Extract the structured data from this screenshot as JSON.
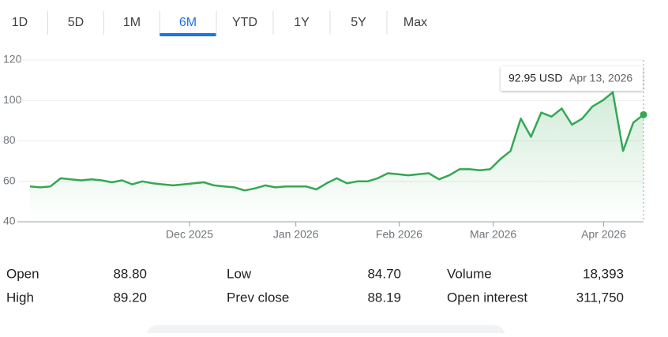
{
  "tabs": {
    "items": [
      "1D",
      "5D",
      "1M",
      "6M",
      "YTD",
      "1Y",
      "5Y",
      "Max"
    ],
    "selected": 3
  },
  "chart_data": {
    "type": "line",
    "series": [
      {
        "color": "#34a853",
        "values": [
          57.5,
          57,
          57.5,
          61.5,
          61,
          60.5,
          61,
          60.5,
          59.5,
          60.5,
          58.5,
          60,
          59,
          58.5,
          58,
          58.5,
          59,
          59.5,
          58,
          57.5,
          57,
          55.5,
          56.5,
          58,
          57,
          57.5,
          57.5,
          57.5,
          56,
          59,
          61.5,
          59,
          60,
          60,
          61.5,
          64,
          63.5,
          63,
          63.5,
          64,
          61,
          63,
          66,
          66,
          65.5,
          66,
          71,
          75,
          91,
          82,
          94,
          92,
          96,
          88,
          91,
          97,
          100,
          104,
          75,
          89,
          92.95
        ]
      }
    ],
    "ylim": [
      40,
      120
    ],
    "yticks": [
      40,
      60,
      80,
      100,
      120
    ],
    "grid": true,
    "xticks": [
      {
        "value": 15.6,
        "label": "Dec 2025"
      },
      {
        "value": 26,
        "label": "Jan 2026"
      },
      {
        "value": 36.1,
        "label": "Feb 2026"
      },
      {
        "value": 45.3,
        "label": "Mar 2026"
      },
      {
        "value": 56.1,
        "label": "Apr 2026"
      }
    ],
    "tooltip": {
      "value_label": "92.95 USD",
      "date": "Apr 13, 2026"
    }
  },
  "stats": [
    {
      "label": "Open",
      "value": "88.80"
    },
    {
      "label": "High",
      "value": "89.20"
    },
    {
      "label": "Low",
      "value": "84.70"
    },
    {
      "label": "Prev close",
      "value": "88.19"
    },
    {
      "label": "Volume",
      "value": "18,393"
    },
    {
      "label": "Open interest",
      "value": "311,750"
    }
  ]
}
